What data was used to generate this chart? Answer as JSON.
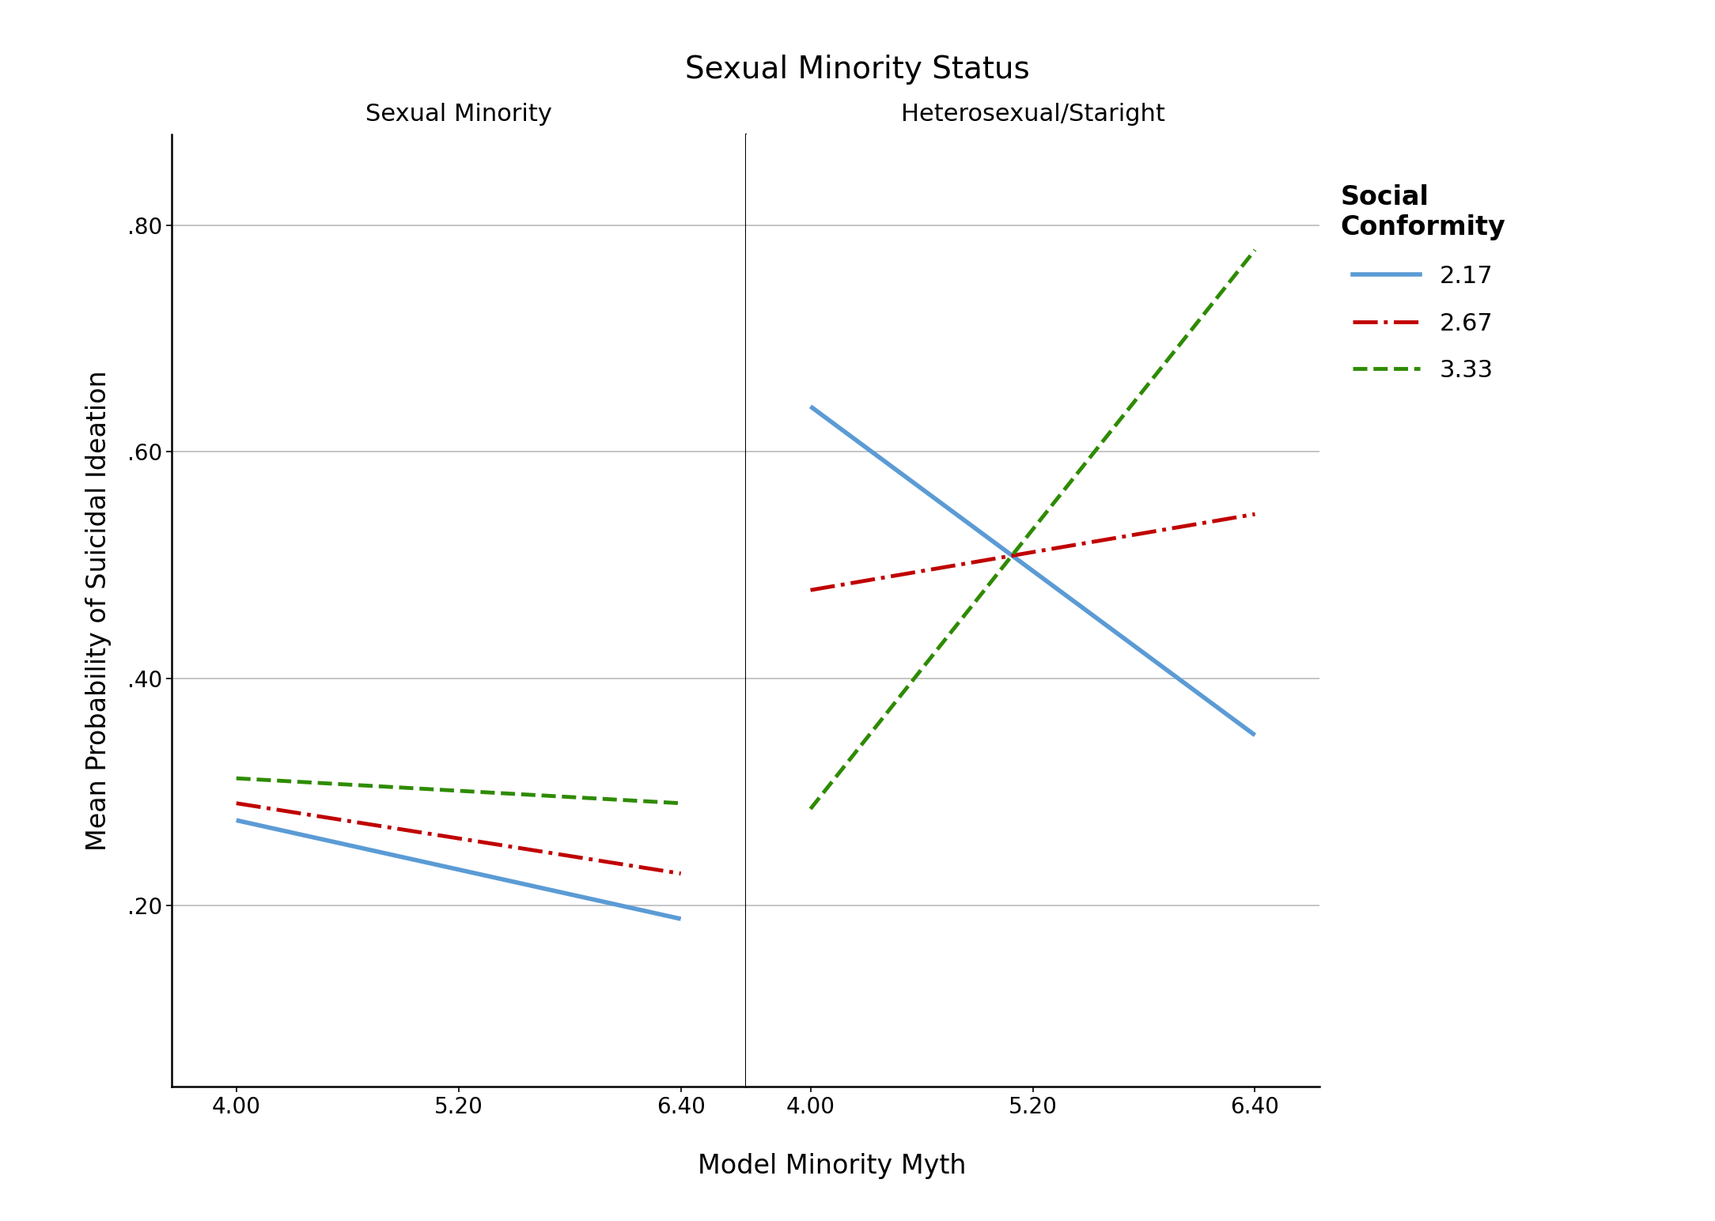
{
  "title": "Sexual Minority Status",
  "xlabel": "Model Minority Myth",
  "ylabel": "Mean Probability of Suicidal Ideation",
  "panel_titles": [
    "Sexual Minority",
    "Heterosexual/Staright"
  ],
  "legend_title": "Social\nConformity",
  "legend_labels": [
    "2.17",
    "2.67",
    "3.33"
  ],
  "x_ticks": [
    4.0,
    5.2,
    6.4
  ],
  "x_tick_labels": [
    "4.00",
    "5.20",
    "6.40"
  ],
  "y_ticks": [
    0.2,
    0.4,
    0.6,
    0.8
  ],
  "y_tick_labels": [
    ".20",
    ".40",
    ".60",
    ".80"
  ],
  "ylim": [
    0.04,
    0.88
  ],
  "xlim": [
    3.65,
    6.75
  ],
  "panel1": {
    "line1": {
      "x": [
        4.0,
        6.4
      ],
      "y": [
        0.275,
        0.188
      ],
      "color": "#5B9BD5",
      "lw": 4.0,
      "linestyle": "solid"
    },
    "line2": {
      "x": [
        4.0,
        6.4
      ],
      "y": [
        0.29,
        0.228
      ],
      "color": "#C00000",
      "lw": 3.5,
      "linestyle": "dashdot"
    },
    "line3": {
      "x": [
        4.0,
        6.4
      ],
      "y": [
        0.312,
        0.29
      ],
      "color": "#2E8B00",
      "lw": 3.5,
      "linestyle": "dashed"
    }
  },
  "panel2": {
    "line1": {
      "x": [
        4.0,
        6.4
      ],
      "y": [
        0.64,
        0.35
      ],
      "color": "#5B9BD5",
      "lw": 4.0,
      "linestyle": "solid"
    },
    "line2": {
      "x": [
        4.0,
        6.4
      ],
      "y": [
        0.478,
        0.545
      ],
      "color": "#C00000",
      "lw": 3.5,
      "linestyle": "dashdot"
    },
    "line3": {
      "x": [
        4.0,
        6.4
      ],
      "y": [
        0.285,
        0.778
      ],
      "color": "#2E8B00",
      "lw": 3.5,
      "linestyle": "dashed"
    }
  },
  "background_color": "#FFFFFF",
  "grid_color": "#BBBBBB",
  "title_fontsize": 28,
  "panel_title_fontsize": 22,
  "axis_label_fontsize": 24,
  "tick_fontsize": 20,
  "legend_fontsize": 22,
  "legend_title_fontsize": 24
}
